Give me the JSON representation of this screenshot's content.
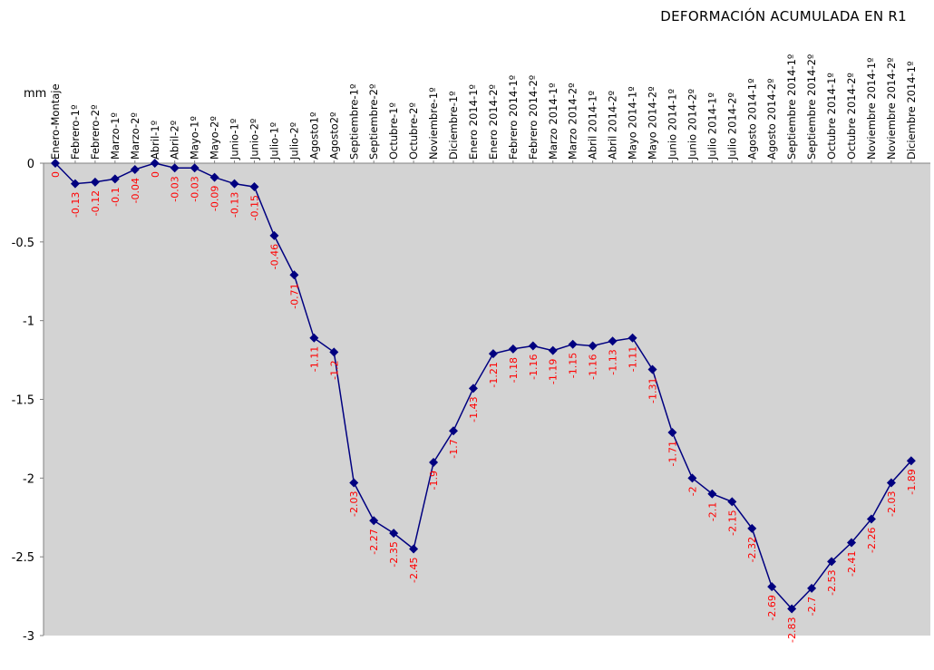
{
  "chart_data": {
    "type": "line",
    "title": "DEFORMACIÓN ACUMULADA EN R1",
    "ylabel": "mm",
    "xlabel": "",
    "ylim": [
      -3,
      0
    ],
    "yticks": [
      0,
      -0.5,
      -1,
      -1.5,
      -2,
      -2.5,
      -3
    ],
    "ytick_labels": [
      "0",
      "-0.5",
      "-1",
      "-1.5",
      "-2",
      "-2.5",
      "-3"
    ],
    "grid": false,
    "legend": "none",
    "colors": {
      "line": "#000080",
      "marker": "#000080",
      "plot_bg": "#d3d3d3",
      "data_label": "#ff0000"
    },
    "categories": [
      "Enero-Montaje",
      "Febrero-1º",
      "Febrero-2º",
      "Marzo-1º",
      "Marzo-2º",
      "Abril-1º",
      "Abril-2º",
      "Mayo-1º",
      "Mayo-2º",
      "Junio-1º",
      "Junio-2º",
      "Julio-1º",
      "Julio-2º",
      "Agosto1º",
      "Agosto2º",
      "Septiembre-1º",
      "Septiembre-2º",
      "Octubre-1º",
      "Octubre-2º",
      "Noviembre-1º",
      "Diciembre-1º",
      "Enero 2014-1º",
      "Enero 2014-2º",
      "Febrero 2014-1º",
      "Febrero 2014-2º",
      "Marzo 2014-1º",
      "Marzo 2014-2º",
      "Abril 2014-1º",
      "Abril 2014-2º",
      "Mayo 2014-1º",
      "Mayo 2014-2º",
      "Junio 2014-1º",
      "Junio 2014-2º",
      "Julio 2014-1º",
      "Julio 2014-2º",
      "Agosto 2014-1º",
      "Agosto 2014-2º",
      "Septiembre 2014-1º",
      "Septiembre 2014-2º",
      "Octubre 2014-1º",
      "Octubre 2014-2º",
      "Noviembre 2014-1º",
      "Noviembre 2014-2º",
      "Diciembre 2014-1º"
    ],
    "values": [
      0,
      -0.13,
      -0.12,
      -0.1,
      -0.04,
      0,
      -0.03,
      -0.03,
      -0.09,
      -0.13,
      -0.15,
      -0.46,
      -0.71,
      -1.11,
      -1.2,
      -2.03,
      -2.27,
      -2.35,
      -2.45,
      -1.9,
      -1.7,
      -1.43,
      -1.21,
      -1.18,
      -1.16,
      -1.19,
      -1.15,
      -1.16,
      -1.13,
      -1.11,
      -1.31,
      -1.71,
      -2,
      -2.1,
      -2.15,
      -2.32,
      -2.69,
      -2.83,
      -2.7,
      -2.53,
      -2.41,
      -2.26,
      -2.03,
      -1.89
    ],
    "value_labels": [
      "0",
      "-0.13",
      "-0.12",
      "-0.1",
      "-0.04",
      "0",
      "-0.03",
      "-0.03",
      "-0.09",
      "-0.13",
      "-0.15",
      "-0.46",
      "-0.71",
      "-1.11",
      "-1.2",
      "-2.03",
      "-2.27",
      "-2.35",
      "-2.45",
      "-1.9",
      "-1.7",
      "-1.43",
      "-1.21",
      "-1.18",
      "-1.16",
      "-1.19",
      "-1.15",
      "-1.16",
      "-1.13",
      "-1.11",
      "-1.31",
      "-1.71",
      "-2",
      "-2.1",
      "-2.15",
      "-2.32",
      "-2.69",
      "-2.83",
      "-2.7",
      "-2.53",
      "-2.41",
      "-2.26",
      "-2.03",
      "-1.89"
    ]
  }
}
